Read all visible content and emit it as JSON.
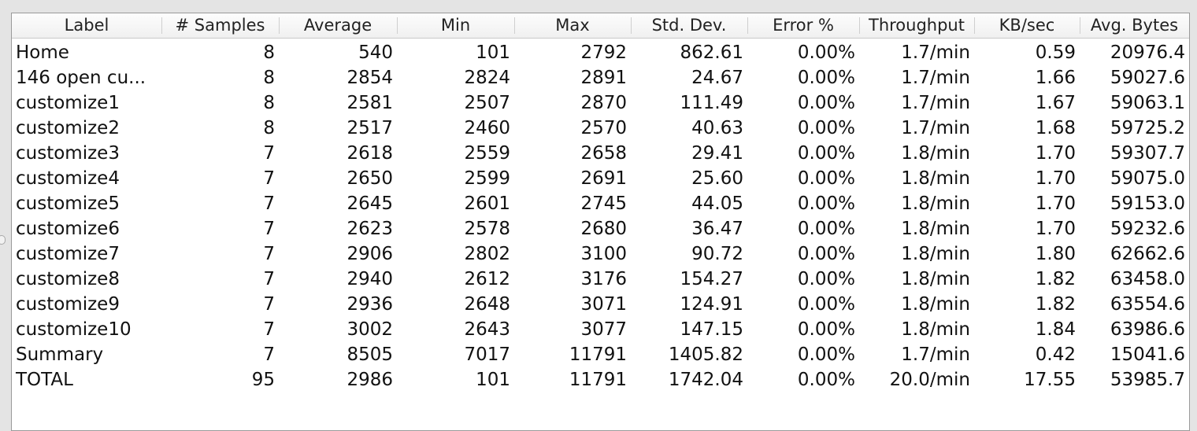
{
  "table": {
    "headers": [
      "Label",
      "# Samples",
      "Average",
      "Min",
      "Max",
      "Std. Dev.",
      "Error %",
      "Throughput",
      "KB/sec",
      "Avg. Bytes"
    ],
    "rows": [
      [
        "Home",
        "8",
        "540",
        "101",
        "2792",
        "862.61",
        "0.00%",
        "1.7/min",
        "0.59",
        "20976.4"
      ],
      [
        "146 open cu...",
        "8",
        "2854",
        "2824",
        "2891",
        "24.67",
        "0.00%",
        "1.7/min",
        "1.66",
        "59027.6"
      ],
      [
        "customize1",
        "8",
        "2581",
        "2507",
        "2870",
        "111.49",
        "0.00%",
        "1.7/min",
        "1.67",
        "59063.1"
      ],
      [
        "customize2",
        "8",
        "2517",
        "2460",
        "2570",
        "40.63",
        "0.00%",
        "1.7/min",
        "1.68",
        "59725.2"
      ],
      [
        "customize3",
        "7",
        "2618",
        "2559",
        "2658",
        "29.41",
        "0.00%",
        "1.8/min",
        "1.70",
        "59307.7"
      ],
      [
        "customize4",
        "7",
        "2650",
        "2599",
        "2691",
        "25.60",
        "0.00%",
        "1.8/min",
        "1.70",
        "59075.0"
      ],
      [
        "customize5",
        "7",
        "2645",
        "2601",
        "2745",
        "44.05",
        "0.00%",
        "1.8/min",
        "1.70",
        "59153.0"
      ],
      [
        "customize6",
        "7",
        "2623",
        "2578",
        "2680",
        "36.47",
        "0.00%",
        "1.8/min",
        "1.70",
        "59232.6"
      ],
      [
        "customize7",
        "7",
        "2906",
        "2802",
        "3100",
        "90.72",
        "0.00%",
        "1.8/min",
        "1.80",
        "62662.6"
      ],
      [
        "customize8",
        "7",
        "2940",
        "2612",
        "3176",
        "154.27",
        "0.00%",
        "1.8/min",
        "1.82",
        "63458.0"
      ],
      [
        "customize9",
        "7",
        "2936",
        "2648",
        "3071",
        "124.91",
        "0.00%",
        "1.8/min",
        "1.82",
        "63554.6"
      ],
      [
        "customize10",
        "7",
        "3002",
        "2643",
        "3077",
        "147.15",
        "0.00%",
        "1.8/min",
        "1.84",
        "63986.6"
      ],
      [
        "Summary",
        "7",
        "8505",
        "7017",
        "11791",
        "1405.82",
        "0.00%",
        "1.7/min",
        "0.42",
        "15041.6"
      ],
      [
        "TOTAL",
        "95",
        "2986",
        "101",
        "11791",
        "1742.04",
        "0.00%",
        "20.0/min",
        "17.55",
        "53985.7"
      ]
    ]
  }
}
